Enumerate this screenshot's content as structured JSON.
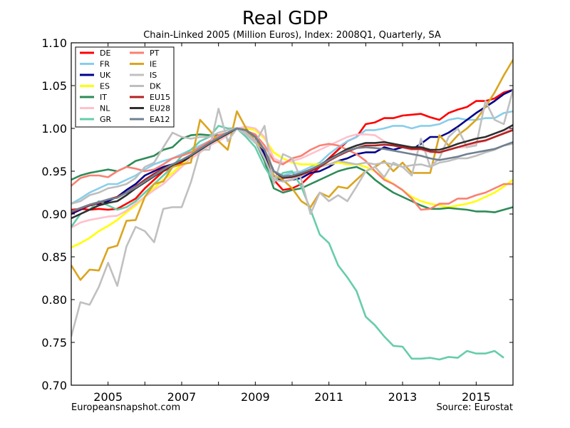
{
  "chart_data": {
    "type": "line",
    "title": "Real GDP",
    "subtitle": "Chain-Linked 2005 (Million Euros), Index: 2008Q1, Quarterly, SA",
    "xlabel": "",
    "ylabel": "",
    "xlim": [
      2004.0,
      2016.0
    ],
    "ylim": [
      0.7,
      1.1
    ],
    "x_ticks": [
      2005,
      2007,
      2009,
      2011,
      2013,
      2015
    ],
    "x_tick_labels": [
      "2005",
      "2007",
      "2009",
      "2011",
      "2013",
      "2015"
    ],
    "y_ticks": [
      0.7,
      0.75,
      0.8,
      0.85,
      0.9,
      0.95,
      1.0,
      1.05,
      1.1
    ],
    "y_tick_labels": [
      "0.70",
      "0.75",
      "0.80",
      "0.85",
      "0.90",
      "0.95",
      "1.00",
      "1.05",
      "1.10"
    ],
    "grid": false,
    "legend_position": "top-left",
    "x_start": 2004.0,
    "x_step": 0.25,
    "footer_left": "Europeansnapshot.com",
    "footer_right": "Source: Eurostat",
    "series": [
      {
        "name": "DE",
        "color": "#ff0000",
        "values": [
          0.905,
          0.906,
          0.905,
          0.906,
          0.905,
          0.906,
          0.912,
          0.918,
          0.93,
          0.94,
          0.95,
          0.955,
          0.96,
          0.968,
          0.975,
          0.982,
          0.99,
          0.995,
          1.0,
          0.997,
          0.99,
          0.97,
          0.94,
          0.928,
          0.93,
          0.935,
          0.945,
          0.955,
          0.965,
          0.975,
          0.985,
          0.99,
          1.005,
          1.007,
          1.012,
          1.012,
          1.015,
          1.016,
          1.017,
          1.013,
          1.01,
          1.018,
          1.022,
          1.025,
          1.032,
          1.032,
          1.035,
          1.042,
          1.045,
          1.05,
          1.053
        ]
      },
      {
        "name": "FR",
        "color": "#87ceeb",
        "values": [
          0.912,
          0.918,
          0.925,
          0.93,
          0.935,
          0.935,
          0.94,
          0.945,
          0.952,
          0.958,
          0.962,
          0.965,
          0.97,
          0.975,
          0.98,
          0.985,
          0.99,
          0.995,
          1.0,
          0.998,
          0.99,
          0.975,
          0.95,
          0.945,
          0.948,
          0.95,
          0.955,
          0.96,
          0.97,
          0.978,
          0.985,
          0.99,
          0.998,
          0.998,
          1.0,
          1.003,
          1.003,
          1.0,
          1.003,
          1.003,
          1.005,
          1.01,
          1.012,
          1.01,
          1.01,
          1.012,
          1.012,
          1.018,
          1.02,
          1.022,
          1.026
        ]
      },
      {
        "name": "UK",
        "color": "#00008b",
        "values": [
          0.9,
          0.905,
          0.91,
          0.912,
          0.915,
          0.92,
          0.928,
          0.935,
          0.945,
          0.95,
          0.955,
          0.958,
          0.962,
          0.965,
          0.972,
          0.98,
          0.988,
          0.995,
          1.0,
          0.998,
          0.99,
          0.97,
          0.945,
          0.938,
          0.94,
          0.942,
          0.948,
          0.95,
          0.955,
          0.962,
          0.965,
          0.97,
          0.972,
          0.972,
          0.978,
          0.975,
          0.978,
          0.975,
          0.982,
          0.99,
          0.99,
          0.995,
          1.002,
          1.01,
          1.018,
          1.025,
          1.032,
          1.04,
          1.045,
          1.05,
          1.055,
          1.06,
          1.066
        ]
      },
      {
        "name": "ES",
        "color": "#ffff00",
        "values": [
          0.861,
          0.866,
          0.872,
          0.88,
          0.886,
          0.893,
          0.902,
          0.91,
          0.92,
          0.93,
          0.94,
          0.948,
          0.958,
          0.965,
          0.972,
          0.98,
          0.988,
          0.995,
          1.0,
          1.0,
          0.998,
          0.988,
          0.972,
          0.965,
          0.96,
          0.958,
          0.958,
          0.958,
          0.958,
          0.96,
          0.958,
          0.958,
          0.955,
          0.95,
          0.942,
          0.935,
          0.928,
          0.92,
          0.915,
          0.912,
          0.91,
          0.908,
          0.91,
          0.912,
          0.915,
          0.92,
          0.925,
          0.932,
          0.94,
          0.948,
          0.955
        ]
      },
      {
        "name": "IT",
        "color": "#2e8b57",
        "values": [
          0.94,
          0.945,
          0.948,
          0.95,
          0.952,
          0.95,
          0.955,
          0.962,
          0.965,
          0.968,
          0.975,
          0.978,
          0.988,
          0.992,
          0.993,
          0.992,
          0.992,
          0.995,
          1.0,
          0.995,
          0.985,
          0.962,
          0.93,
          0.925,
          0.928,
          0.93,
          0.935,
          0.94,
          0.945,
          0.95,
          0.953,
          0.955,
          0.95,
          0.94,
          0.932,
          0.925,
          0.92,
          0.915,
          0.91,
          0.906,
          0.906,
          0.907,
          0.906,
          0.905,
          0.903,
          0.903,
          0.902,
          0.905,
          0.908,
          0.91
        ]
      },
      {
        "name": "NL",
        "color": "#ffc0cb",
        "values": [
          0.884,
          0.89,
          0.893,
          0.895,
          0.897,
          0.898,
          0.904,
          0.912,
          0.92,
          0.928,
          0.935,
          0.945,
          0.955,
          0.965,
          0.972,
          0.98,
          0.985,
          0.992,
          1.0,
          1.002,
          1.0,
          0.99,
          0.965,
          0.96,
          0.962,
          0.965,
          0.97,
          0.975,
          0.98,
          0.985,
          0.99,
          0.993,
          0.993,
          0.992,
          0.985,
          0.98,
          0.978,
          0.975,
          0.975,
          0.972,
          0.972,
          0.975,
          0.978,
          0.978,
          0.983,
          0.985,
          0.99,
          0.995,
          1.0,
          1.005,
          1.008
        ]
      },
      {
        "name": "GR",
        "color": "#66cdaa",
        "values": [
          0.885,
          0.9,
          0.905,
          0.915,
          0.91,
          0.905,
          0.908,
          0.915,
          0.925,
          0.935,
          0.945,
          0.955,
          0.968,
          0.975,
          0.985,
          0.99,
          1.003,
          1.0,
          1.0,
          0.99,
          0.978,
          0.955,
          0.938,
          0.948,
          0.95,
          0.932,
          0.905,
          0.876,
          0.866,
          0.84,
          0.826,
          0.81,
          0.78,
          0.77,
          0.757,
          0.746,
          0.745,
          0.731,
          0.731,
          0.732,
          0.73,
          0.733,
          0.732,
          0.74,
          0.737,
          0.737,
          0.74,
          0.732
        ]
      },
      {
        "name": "PT",
        "color": "#fa8072",
        "values": [
          0.933,
          0.942,
          0.945,
          0.945,
          0.943,
          0.95,
          0.955,
          0.953,
          0.95,
          0.952,
          0.958,
          0.965,
          0.968,
          0.972,
          0.978,
          0.985,
          0.992,
          0.995,
          1.0,
          0.997,
          0.993,
          0.98,
          0.962,
          0.958,
          0.965,
          0.968,
          0.975,
          0.98,
          0.982,
          0.98,
          0.975,
          0.97,
          0.962,
          0.95,
          0.94,
          0.935,
          0.928,
          0.918,
          0.905,
          0.906,
          0.912,
          0.912,
          0.918,
          0.918,
          0.922,
          0.925,
          0.93,
          0.935,
          0.935
        ]
      },
      {
        "name": "IE",
        "color": "#daa520",
        "values": [
          0.84,
          0.823,
          0.835,
          0.834,
          0.86,
          0.863,
          0.892,
          0.893,
          0.92,
          0.935,
          0.938,
          0.955,
          0.958,
          0.96,
          1.01,
          0.998,
          0.985,
          0.975,
          1.02,
          1.0,
          0.985,
          0.975,
          0.945,
          0.94,
          0.93,
          0.915,
          0.908,
          0.925,
          0.92,
          0.932,
          0.93,
          0.94,
          0.95,
          0.955,
          0.962,
          0.95,
          0.96,
          0.948,
          0.948,
          0.948,
          0.992,
          0.98,
          0.992,
          1.0,
          1.01,
          1.025,
          1.042,
          1.062,
          1.08,
          1.096
        ]
      },
      {
        "name": "IS",
        "color": "#c0c0c0",
        "values": [
          0.757,
          0.797,
          0.794,
          0.815,
          0.843,
          0.816,
          0.862,
          0.885,
          0.88,
          0.867,
          0.906,
          0.908,
          0.908,
          0.937,
          0.975,
          0.975,
          1.023,
          0.985,
          1.0,
          0.993,
          0.983,
          1.003,
          0.935,
          0.97,
          0.965,
          0.94,
          0.9,
          0.925,
          0.915,
          0.922,
          0.915,
          0.932,
          0.95,
          0.955,
          0.943,
          0.96,
          0.955,
          0.945,
          0.988,
          0.955,
          0.965,
          0.99,
          1.0,
          0.978,
          0.98,
          1.032,
          1.01,
          1.005,
          1.045,
          1.053
        ]
      },
      {
        "name": "DK",
        "color": "#bebebe",
        "values": [
          0.912,
          0.915,
          0.922,
          0.925,
          0.93,
          0.932,
          0.935,
          0.942,
          0.955,
          0.96,
          0.978,
          0.995,
          0.99,
          0.988,
          0.99,
          0.99,
          0.995,
          0.998,
          1.0,
          0.995,
          0.985,
          0.965,
          0.94,
          0.938,
          0.94,
          0.945,
          0.95,
          0.955,
          0.958,
          0.962,
          0.96,
          0.958,
          0.96,
          0.958,
          0.96,
          0.958,
          0.955,
          0.957,
          0.958,
          0.955,
          0.96,
          0.962,
          0.965,
          0.965,
          0.968,
          0.972,
          0.975,
          0.98,
          0.982,
          0.98,
          0.977
        ]
      },
      {
        "name": "EU15",
        "color": "#b22222",
        "values": [
          0.902,
          0.906,
          0.91,
          0.913,
          0.917,
          0.92,
          0.925,
          0.932,
          0.94,
          0.947,
          0.953,
          0.958,
          0.963,
          0.969,
          0.975,
          0.982,
          0.988,
          0.994,
          1.0,
          0.998,
          0.99,
          0.975,
          0.95,
          0.942,
          0.943,
          0.946,
          0.95,
          0.955,
          0.962,
          0.968,
          0.973,
          0.977,
          0.98,
          0.98,
          0.981,
          0.98,
          0.978,
          0.976,
          0.976,
          0.973,
          0.972,
          0.975,
          0.978,
          0.981,
          0.984,
          0.986,
          0.99,
          0.994,
          0.998,
          1.002,
          1.006,
          1.009,
          1.012
        ]
      },
      {
        "name": "EU28",
        "color": "#2f2f2f",
        "values": [
          0.895,
          0.9,
          0.905,
          0.91,
          0.913,
          0.915,
          0.922,
          0.93,
          0.937,
          0.944,
          0.951,
          0.957,
          0.962,
          0.968,
          0.975,
          0.982,
          0.988,
          0.994,
          1.0,
          0.998,
          0.99,
          0.975,
          0.95,
          0.943,
          0.944,
          0.947,
          0.952,
          0.957,
          0.964,
          0.97,
          0.976,
          0.98,
          0.983,
          0.983,
          0.984,
          0.982,
          0.98,
          0.978,
          0.978,
          0.975,
          0.975,
          0.978,
          0.982,
          0.985,
          0.988,
          0.99,
          0.994,
          0.998,
          1.004,
          1.009,
          1.013,
          1.016,
          1.019
        ]
      },
      {
        "name": "EA12",
        "color": "#708090",
        "values": [
          0.903,
          0.907,
          0.911,
          0.914,
          0.917,
          0.919,
          0.925,
          0.931,
          0.938,
          0.945,
          0.952,
          0.958,
          0.963,
          0.969,
          0.976,
          0.983,
          0.989,
          0.995,
          1.0,
          0.998,
          0.99,
          0.975,
          0.95,
          0.944,
          0.945,
          0.948,
          0.952,
          0.957,
          0.963,
          0.969,
          0.974,
          0.977,
          0.978,
          0.977,
          0.976,
          0.974,
          0.972,
          0.97,
          0.968,
          0.965,
          0.963,
          0.965,
          0.967,
          0.97,
          0.972,
          0.974,
          0.976,
          0.98,
          0.984,
          0.988,
          0.992,
          0.995,
          0.997
        ]
      }
    ]
  }
}
